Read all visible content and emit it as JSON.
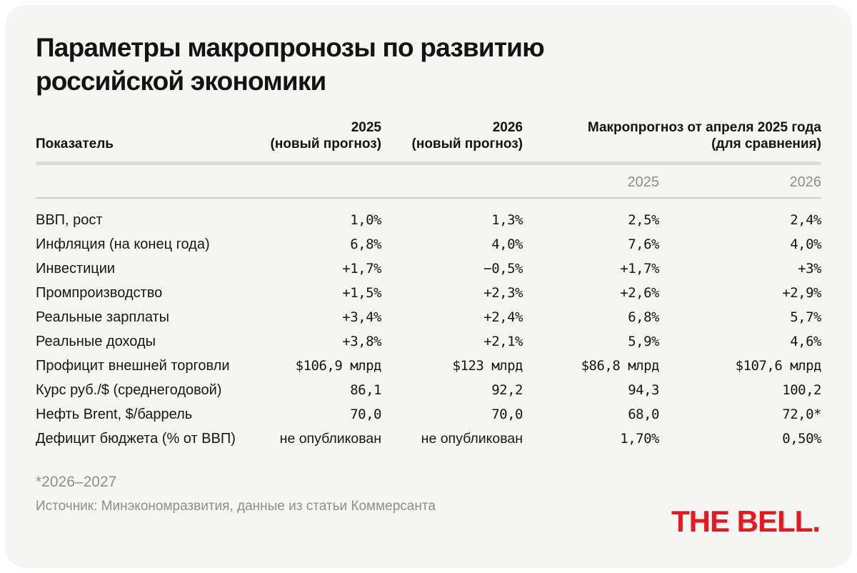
{
  "chart_data": {
    "type": "table",
    "title": "Параметры макропронозы по развитию российской экономики",
    "columns": [
      "Показатель",
      "2025 (новый прогноз)",
      "2026 (новый прогноз)",
      "Макропрогноз от апреля 2025 года (для сравнения) — 2025",
      "Макропрогноз от апреля 2025 года (для сравнения) — 2026"
    ],
    "rows": [
      [
        "ВВП, рост",
        "1,0%",
        "1,3%",
        "2,5%",
        "2,4%"
      ],
      [
        "Инфляция (на конец года)",
        "6,8%",
        "4,0%",
        "7,6%",
        "4,0%"
      ],
      [
        "Инвестиции",
        "+1,7%",
        "−0,5%",
        "+1,7%",
        "+3%"
      ],
      [
        "Промпроизводство",
        "+1,5%",
        "+2,3%",
        "+2,6%",
        "+2,9%"
      ],
      [
        "Реальные зарплаты",
        "+3,4%",
        "+2,4%",
        "6,8%",
        "5,7%"
      ],
      [
        "Реальные доходы",
        "+3,8%",
        "+2,1%",
        "5,9%",
        "4,6%"
      ],
      [
        "Профицит внешней торговли",
        "$106,9 млрд",
        "$123 млрд",
        "$86,8 млрд",
        "$107,6 млрд"
      ],
      [
        "Курс руб./$ (среднегодовой)",
        "86,1",
        "92,2",
        "94,3",
        "100,2"
      ],
      [
        "Нефть Brent, $/баррель",
        "70,0",
        "70,0",
        "68,0",
        "72,0*"
      ],
      [
        "Дефицит бюджета (% от ВВП)",
        "не опубликован",
        "не опубликован",
        "1,70%",
        "0,50%"
      ]
    ]
  },
  "header": {
    "indicator": "Показатель",
    "new2025": "2025\n(новый прогноз)",
    "new2026": "2026\n(новый прогноз)",
    "april_group": "Макропрогноз от апреля 2025 года\n(для сравнения)",
    "april_sub_2025": "2025",
    "april_sub_2026": "2026"
  },
  "footer": {
    "footnote": "*2026–2027",
    "source": "Источник: Минэкономразвития, данные из статьи Коммерсанта",
    "logo": "THE BELL."
  },
  "colors": {
    "brand_red": "#F0151D",
    "card_bg": "#F5F5F3",
    "text_dark": "#131313",
    "text_gray": "#8E8E8E"
  }
}
